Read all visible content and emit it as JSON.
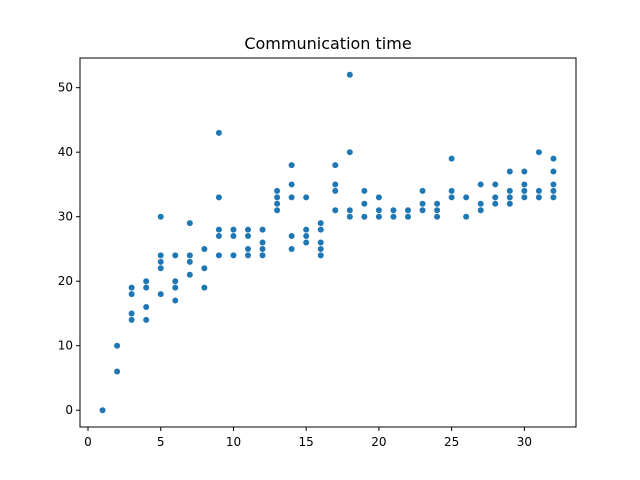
{
  "chart_data": {
    "type": "scatter",
    "title": "Communication time",
    "xlabel": "",
    "ylabel": "",
    "xlim": [
      -0.55,
      33.55
    ],
    "ylim": [
      -2.6,
      54.6
    ],
    "xticks": [
      0,
      5,
      10,
      15,
      20,
      25,
      30
    ],
    "yticks": [
      0,
      10,
      20,
      30,
      40,
      50
    ],
    "grid": false,
    "marker_color": "#1f77b4",
    "points": [
      [
        1,
        0
      ],
      [
        2,
        6
      ],
      [
        2,
        10
      ],
      [
        3,
        14
      ],
      [
        3,
        15
      ],
      [
        3,
        18
      ],
      [
        3,
        19
      ],
      [
        4,
        14
      ],
      [
        4,
        16
      ],
      [
        4,
        19
      ],
      [
        4,
        20
      ],
      [
        5,
        18
      ],
      [
        5,
        22
      ],
      [
        5,
        23
      ],
      [
        5,
        24
      ],
      [
        5,
        30
      ],
      [
        6,
        17
      ],
      [
        6,
        19
      ],
      [
        6,
        20
      ],
      [
        6,
        24
      ],
      [
        7,
        21
      ],
      [
        7,
        23
      ],
      [
        7,
        24
      ],
      [
        7,
        29
      ],
      [
        8,
        19
      ],
      [
        8,
        22
      ],
      [
        8,
        25
      ],
      [
        9,
        24
      ],
      [
        9,
        27
      ],
      [
        9,
        28
      ],
      [
        9,
        33
      ],
      [
        9,
        43
      ],
      [
        10,
        24
      ],
      [
        10,
        27
      ],
      [
        10,
        28
      ],
      [
        11,
        24
      ],
      [
        11,
        25
      ],
      [
        11,
        27
      ],
      [
        11,
        28
      ],
      [
        12,
        24
      ],
      [
        12,
        25
      ],
      [
        12,
        26
      ],
      [
        12,
        28
      ],
      [
        13,
        31
      ],
      [
        13,
        32
      ],
      [
        13,
        33
      ],
      [
        13,
        34
      ],
      [
        14,
        25
      ],
      [
        14,
        27
      ],
      [
        14,
        33
      ],
      [
        14,
        35
      ],
      [
        14,
        38
      ],
      [
        15,
        26
      ],
      [
        15,
        27
      ],
      [
        15,
        28
      ],
      [
        15,
        33
      ],
      [
        16,
        24
      ],
      [
        16,
        25
      ],
      [
        16,
        26
      ],
      [
        16,
        28
      ],
      [
        16,
        29
      ],
      [
        17,
        31
      ],
      [
        17,
        34
      ],
      [
        17,
        35
      ],
      [
        17,
        38
      ],
      [
        18,
        30
      ],
      [
        18,
        31
      ],
      [
        18,
        40
      ],
      [
        18,
        52
      ],
      [
        19,
        30
      ],
      [
        19,
        32
      ],
      [
        19,
        34
      ],
      [
        20,
        30
      ],
      [
        20,
        31
      ],
      [
        20,
        33
      ],
      [
        21,
        30
      ],
      [
        21,
        31
      ],
      [
        22,
        30
      ],
      [
        22,
        31
      ],
      [
        23,
        31
      ],
      [
        23,
        32
      ],
      [
        23,
        34
      ],
      [
        24,
        30
      ],
      [
        24,
        31
      ],
      [
        24,
        32
      ],
      [
        25,
        33
      ],
      [
        25,
        34
      ],
      [
        25,
        39
      ],
      [
        26,
        30
      ],
      [
        26,
        33
      ],
      [
        27,
        31
      ],
      [
        27,
        32
      ],
      [
        27,
        35
      ],
      [
        28,
        32
      ],
      [
        28,
        33
      ],
      [
        28,
        35
      ],
      [
        29,
        32
      ],
      [
        29,
        33
      ],
      [
        29,
        34
      ],
      [
        29,
        37
      ],
      [
        30,
        33
      ],
      [
        30,
        34
      ],
      [
        30,
        35
      ],
      [
        30,
        37
      ],
      [
        31,
        33
      ],
      [
        31,
        34
      ],
      [
        31,
        40
      ],
      [
        32,
        33
      ],
      [
        32,
        34
      ],
      [
        32,
        35
      ],
      [
        32,
        37
      ],
      [
        32,
        39
      ]
    ]
  }
}
